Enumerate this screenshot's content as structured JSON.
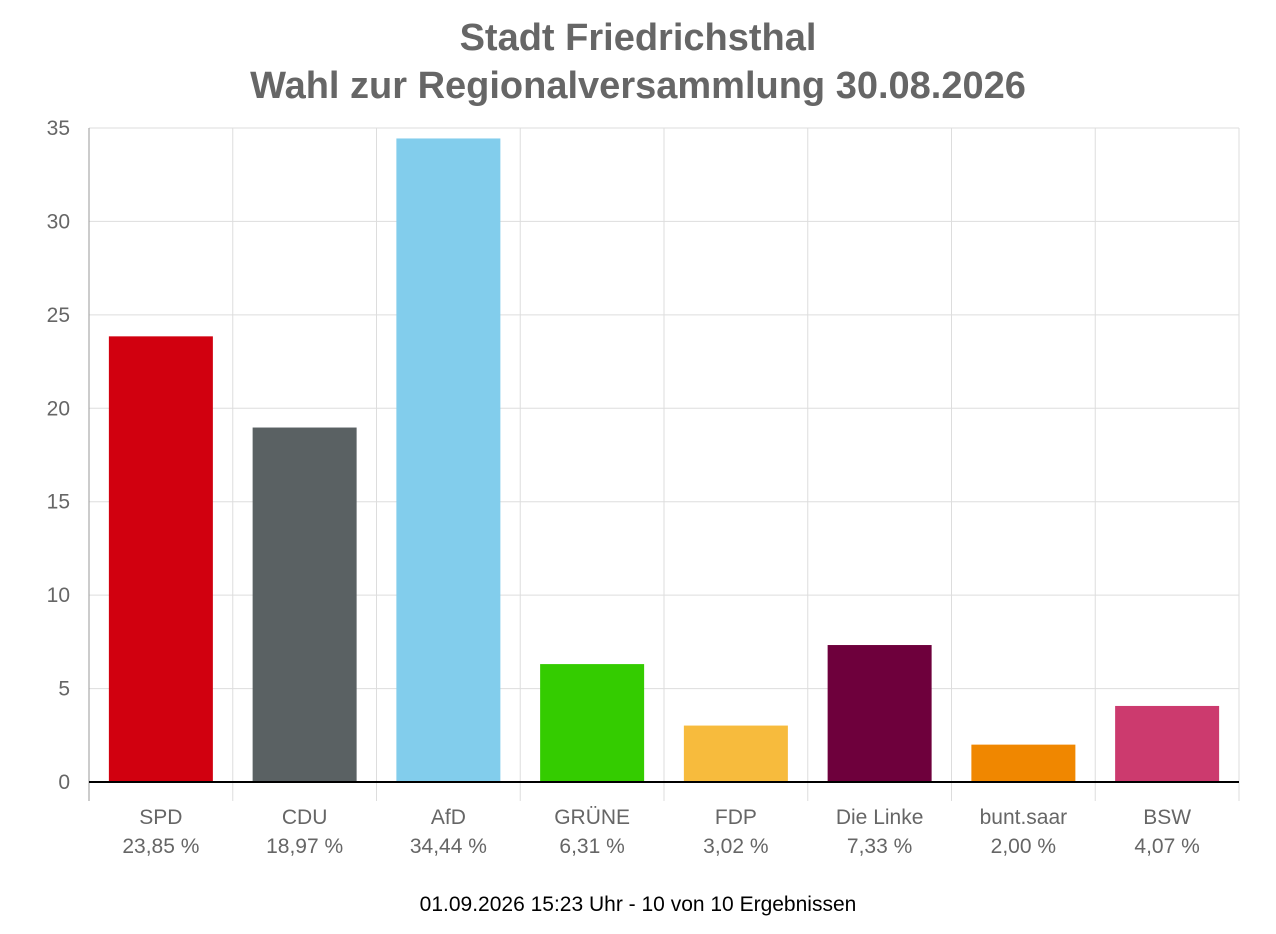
{
  "chart_data": {
    "type": "bar",
    "title": "Stadt Friedrichsthal",
    "subtitle": "Wahl zur Regionalversammlung 30.08.2026",
    "categories": [
      "SPD",
      "CDU",
      "AfD",
      "GRÜNE",
      "FDP",
      "Die Linke",
      "bunt.saar",
      "BSW"
    ],
    "values": [
      23.85,
      18.97,
      34.44,
      6.31,
      3.02,
      7.33,
      2.0,
      4.07
    ],
    "value_labels": [
      "23,85 %",
      "18,97 %",
      "34,44 %",
      "6,31 %",
      "3,02 %",
      "7,33 %",
      "2,00 %",
      "4,07 %"
    ],
    "colors": [
      "#d1000f",
      "#5a6163",
      "#82cdec",
      "#34cc00",
      "#f7bb3d",
      "#6e003c",
      "#f08700",
      "#cc3a6e"
    ],
    "ylim": [
      0,
      35
    ],
    "yticks": [
      0,
      5,
      10,
      15,
      20,
      25,
      30,
      35
    ],
    "xlabel": "",
    "ylabel": "",
    "grid": true,
    "legend": "none"
  },
  "footer": {
    "text": "01.09.2026 15:23 Uhr - 10 von 10 Ergebnissen"
  }
}
